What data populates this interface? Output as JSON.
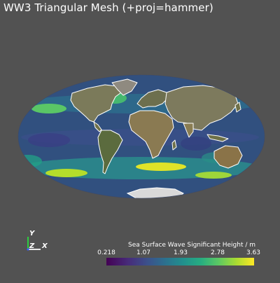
{
  "window": {
    "title": "WW3 Triangular Mesh (+proj=hammer)"
  },
  "axes_widget": {
    "y": "Y",
    "z": "Z",
    "x": "X",
    "colors": {
      "x": "#e8e8e8",
      "y": "#2ecc40",
      "z": "#3a5bff"
    }
  },
  "colorbar": {
    "title": "Sea Surface Wave Significant Height / m",
    "ticks": [
      "0.218",
      "1.07",
      "1.93",
      "2.78",
      "3.63"
    ],
    "colormap": "viridis"
  },
  "colors": {
    "background": "#525252",
    "coastline": "#ffffff",
    "antarctica": "#d9d9d9"
  }
}
